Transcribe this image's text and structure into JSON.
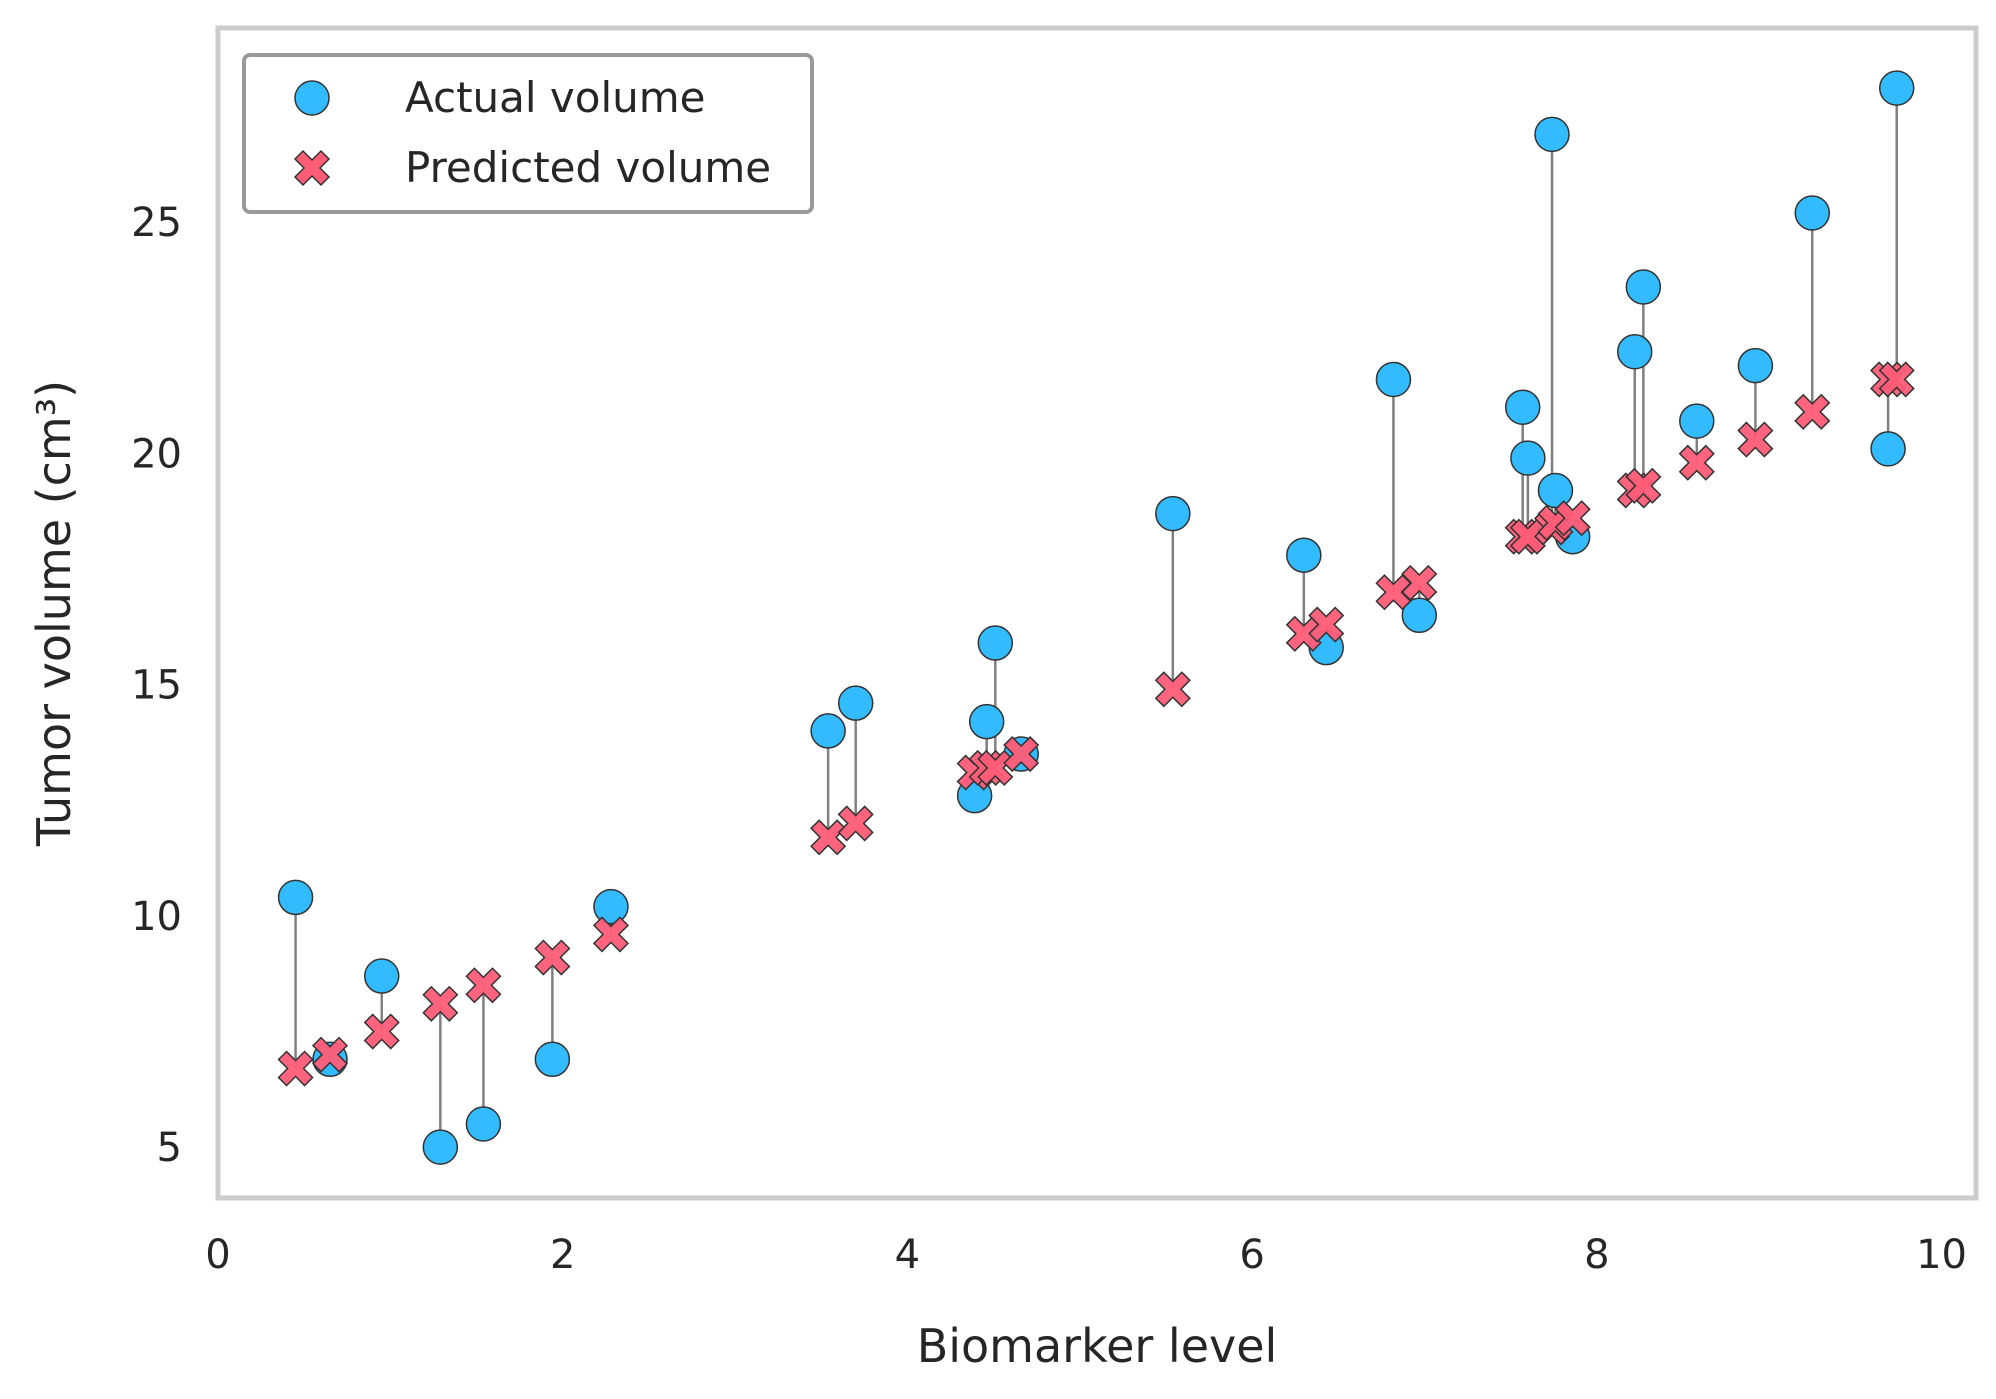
{
  "colors": {
    "actual": "#33bbff",
    "predicted": "#ff5c77",
    "residual": "#808080",
    "frame": "#cccccc",
    "legend_frame": "#999999",
    "text": "#262626",
    "marker_edge": "#333333"
  },
  "chart_data": {
    "type": "scatter",
    "title": "",
    "xlabel": "Biomarker level",
    "ylabel": "Tumor volume (cm³)",
    "xlim": [
      0,
      10.2
    ],
    "ylim": [
      3.9,
      29.2
    ],
    "xticks": [
      0,
      2,
      4,
      6,
      8,
      10
    ],
    "yticks": [
      5,
      10,
      15,
      20,
      25
    ],
    "grid": false,
    "legend_position": "top-left",
    "series": [
      {
        "name": "Actual volume",
        "marker": "circle",
        "points": [
          [
            0.45,
            10.4
          ],
          [
            0.65,
            6.9
          ],
          [
            0.95,
            8.7
          ],
          [
            1.29,
            5.0
          ],
          [
            1.54,
            5.5
          ],
          [
            1.94,
            6.9
          ],
          [
            2.28,
            10.2
          ],
          [
            3.54,
            14.0
          ],
          [
            3.7,
            14.6
          ],
          [
            4.39,
            12.6
          ],
          [
            4.46,
            14.2
          ],
          [
            4.51,
            15.9
          ],
          [
            4.66,
            13.5
          ],
          [
            5.54,
            18.7
          ],
          [
            6.3,
            17.8
          ],
          [
            6.43,
            15.8
          ],
          [
            6.82,
            21.6
          ],
          [
            6.97,
            16.5
          ],
          [
            7.57,
            21.0
          ],
          [
            7.6,
            19.9
          ],
          [
            7.74,
            26.9
          ],
          [
            7.76,
            19.2
          ],
          [
            7.86,
            18.2
          ],
          [
            8.22,
            22.2
          ],
          [
            8.27,
            23.6
          ],
          [
            8.58,
            20.7
          ],
          [
            8.92,
            21.9
          ],
          [
            9.25,
            25.2
          ],
          [
            9.69,
            20.1
          ],
          [
            9.74,
            27.9
          ]
        ]
      },
      {
        "name": "Predicted volume",
        "marker": "x",
        "points": [
          [
            0.45,
            6.7
          ],
          [
            0.65,
            7.0
          ],
          [
            0.95,
            7.5
          ],
          [
            1.29,
            8.1
          ],
          [
            1.54,
            8.5
          ],
          [
            1.94,
            9.1
          ],
          [
            2.28,
            9.6
          ],
          [
            3.54,
            11.7
          ],
          [
            3.7,
            12.0
          ],
          [
            4.39,
            13.1
          ],
          [
            4.46,
            13.2
          ],
          [
            4.51,
            13.2
          ],
          [
            4.66,
            13.5
          ],
          [
            5.54,
            14.9
          ],
          [
            6.3,
            16.1
          ],
          [
            6.43,
            16.3
          ],
          [
            6.82,
            17.0
          ],
          [
            6.97,
            17.2
          ],
          [
            7.57,
            18.2
          ],
          [
            7.6,
            18.2
          ],
          [
            7.74,
            18.4
          ],
          [
            7.76,
            18.5
          ],
          [
            7.86,
            18.6
          ],
          [
            8.22,
            19.2
          ],
          [
            8.27,
            19.3
          ],
          [
            8.58,
            19.8
          ],
          [
            8.92,
            20.3
          ],
          [
            9.25,
            20.9
          ],
          [
            9.69,
            21.6
          ],
          [
            9.74,
            21.6
          ]
        ]
      }
    ]
  }
}
